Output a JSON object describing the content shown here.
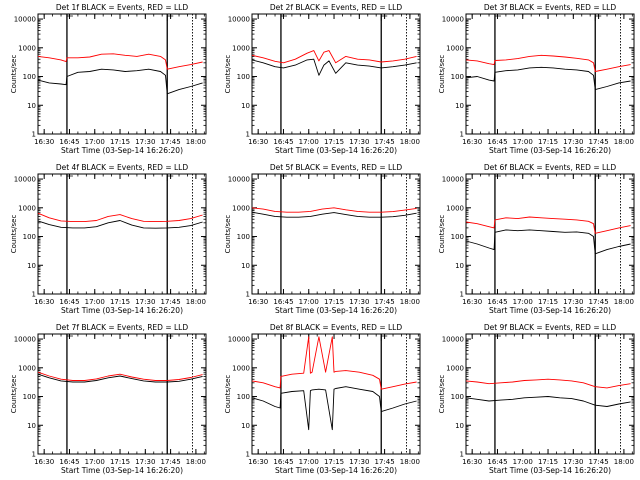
{
  "figure": {
    "x_tick_labels": [
      "16:30",
      "16:45",
      "17:00",
      "17:15",
      "17:30",
      "17:45",
      "18:00"
    ],
    "y_tick_labels": [
      "1",
      "10",
      "100",
      "1000",
      "10000"
    ],
    "ylabel": "Counts/sec",
    "xlabel": "Start Time (03-Sep-14 16:26:20)"
  },
  "chart_data": [
    {
      "type": "line",
      "title": "Det 1f BLACK = Events, RED = LLD",
      "xlabel": "Start Time (03-Sep-14 16:26:20)",
      "ylabel": "Counts/sec",
      "yscale": "log",
      "xlim": [
        "16:26:20",
        "18:06"
      ],
      "ylim": [
        1,
        15000
      ],
      "vlines": [
        "16:43.5",
        "17:43",
        "17:58"
      ],
      "x": [
        "16:26:20",
        "16:33",
        "16:40",
        "16:43",
        "16:43.5",
        "16:50",
        "16:57",
        "17:04",
        "17:11",
        "17:18",
        "17:25",
        "17:32",
        "17:39",
        "17:42",
        "17:43",
        "17:50",
        "17:57",
        "18:04"
      ],
      "series": [
        {
          "color": "#000000",
          "values": [
            75,
            60,
            55,
            52,
            100,
            140,
            150,
            180,
            170,
            150,
            160,
            180,
            150,
            110,
            25,
            35,
            45,
            60
          ]
        },
        {
          "color": "#ff0000",
          "values": [
            500,
            450,
            380,
            330,
            450,
            450,
            480,
            600,
            620,
            550,
            500,
            600,
            500,
            380,
            180,
            220,
            260,
            320
          ]
        }
      ]
    },
    {
      "type": "line",
      "title": "Det 2f BLACK = Events, RED = LLD",
      "xlabel": "Start Time (03-Sep-14 16:26:20)",
      "ylabel": "Counts/sec",
      "yscale": "log",
      "xlim": [
        "16:26:20",
        "18:06"
      ],
      "ylim": [
        1,
        15000
      ],
      "vlines": [
        "16:43.5",
        "17:43",
        "17:58"
      ],
      "x": [
        "16:26:20",
        "16:33",
        "16:40",
        "16:45",
        "16:52",
        "16:59",
        "17:03",
        "17:06",
        "17:09",
        "17:12",
        "17:16",
        "17:22",
        "17:29",
        "17:36",
        "17:43",
        "17:50",
        "17:57",
        "18:04"
      ],
      "series": [
        {
          "color": "#000000",
          "values": [
            380,
            300,
            220,
            200,
            250,
            380,
            400,
            110,
            250,
            350,
            130,
            300,
            250,
            230,
            200,
            220,
            250,
            300
          ]
        },
        {
          "color": "#ff0000",
          "values": [
            550,
            450,
            340,
            300,
            400,
            650,
            800,
            350,
            700,
            800,
            300,
            500,
            400,
            380,
            320,
            350,
            400,
            500
          ]
        }
      ]
    },
    {
      "type": "line",
      "title": "Det 3f BLACK = Events, RED = LLD",
      "xlabel": "Start Time (03-Sep-14 16:26:20)",
      "ylabel": "Counts/sec",
      "yscale": "log",
      "xlim": [
        "16:26:20",
        "18:06"
      ],
      "ylim": [
        1,
        15000
      ],
      "vlines": [
        "16:43.5",
        "17:43",
        "17:58"
      ],
      "x": [
        "16:26:20",
        "16:33",
        "16:40",
        "16:43",
        "16:43.5",
        "16:50",
        "16:57",
        "17:04",
        "17:11",
        "17:18",
        "17:25",
        "17:32",
        "17:39",
        "17:42",
        "17:43",
        "17:50",
        "17:57",
        "18:04"
      ],
      "series": [
        {
          "color": "#000000",
          "values": [
            90,
            100,
            75,
            70,
            140,
            160,
            170,
            200,
            210,
            200,
            180,
            170,
            150,
            110,
            35,
            45,
            60,
            70
          ]
        },
        {
          "color": "#ff0000",
          "values": [
            380,
            350,
            280,
            260,
            360,
            380,
            420,
            500,
            550,
            520,
            480,
            430,
            380,
            300,
            150,
            180,
            220,
            260
          ]
        }
      ]
    },
    {
      "type": "line",
      "title": "Det 4f BLACK = Events, RED = LLD",
      "xlabel": "Start Time (03-Sep-14 16:26:20)",
      "ylabel": "Counts/sec",
      "yscale": "log",
      "xlim": [
        "16:26:20",
        "18:06"
      ],
      "ylim": [
        1,
        15000
      ],
      "vlines": [
        "16:43.5",
        "17:43",
        "17:58"
      ],
      "x": [
        "16:26:20",
        "16:33",
        "16:40",
        "16:47",
        "16:54",
        "17:01",
        "17:08",
        "17:15",
        "17:22",
        "17:29",
        "17:36",
        "17:43",
        "17:50",
        "17:57",
        "18:04"
      ],
      "series": [
        {
          "color": "#000000",
          "values": [
            350,
            260,
            210,
            200,
            200,
            220,
            300,
            360,
            250,
            200,
            195,
            200,
            210,
            240,
            320
          ]
        },
        {
          "color": "#ff0000",
          "values": [
            650,
            450,
            350,
            330,
            330,
            360,
            500,
            580,
            420,
            340,
            330,
            340,
            360,
            420,
            560
          ]
        }
      ]
    },
    {
      "type": "line",
      "title": "Det 5f BLACK = Events, RED = LLD",
      "xlabel": "Start Time (03-Sep-14 16:26:20)",
      "ylabel": "Counts/sec",
      "yscale": "log",
      "xlim": [
        "16:26:20",
        "18:06"
      ],
      "ylim": [
        1,
        15000
      ],
      "vlines": [
        "16:43.5",
        "17:43",
        "17:58"
      ],
      "x": [
        "16:26:20",
        "16:33",
        "16:40",
        "16:47",
        "16:54",
        "17:01",
        "17:08",
        "17:15",
        "17:22",
        "17:29",
        "17:36",
        "17:43",
        "17:50",
        "17:57",
        "18:04"
      ],
      "series": [
        {
          "color": "#000000",
          "values": [
            700,
            600,
            500,
            470,
            470,
            500,
            600,
            680,
            580,
            500,
            470,
            470,
            490,
            550,
            650
          ]
        },
        {
          "color": "#ff0000",
          "values": [
            1000,
            900,
            750,
            700,
            700,
            750,
            900,
            1000,
            850,
            750,
            700,
            700,
            740,
            830,
            950
          ]
        }
      ]
    },
    {
      "type": "line",
      "title": "Det 6f BLACK = Events, RED = LLD",
      "xlabel": "Start Time (03-Sep-14 16:26:20)",
      "ylabel": "Counts/sec",
      "yscale": "log",
      "xlim": [
        "16:26:20",
        "18:06"
      ],
      "ylim": [
        1,
        15000
      ],
      "vlines": [
        "16:43.5",
        "17:43",
        "17:58"
      ],
      "x": [
        "16:26:20",
        "16:33",
        "16:40",
        "16:43",
        "16:43.5",
        "16:50",
        "16:57",
        "17:04",
        "17:11",
        "17:18",
        "17:25",
        "17:32",
        "17:39",
        "17:42",
        "17:43",
        "17:50",
        "17:57",
        "18:04"
      ],
      "series": [
        {
          "color": "#000000",
          "values": [
            70,
            55,
            40,
            35,
            140,
            170,
            160,
            170,
            160,
            150,
            140,
            145,
            130,
            100,
            25,
            35,
            45,
            55
          ]
        },
        {
          "color": "#ff0000",
          "values": [
            320,
            280,
            220,
            200,
            380,
            450,
            420,
            480,
            450,
            420,
            400,
            380,
            340,
            280,
            130,
            160,
            200,
            240
          ]
        }
      ]
    },
    {
      "type": "line",
      "title": "Det 7f BLACK = Events, RED = LLD",
      "xlabel": "Start Time (03-Sep-14 16:26:20)",
      "ylabel": "Counts/sec",
      "yscale": "log",
      "xlim": [
        "16:26:20",
        "18:06"
      ],
      "ylim": [
        1,
        15000
      ],
      "vlines": [
        "16:43.5",
        "17:43",
        "17:58"
      ],
      "x": [
        "16:26:20",
        "16:33",
        "16:40",
        "16:47",
        "16:54",
        "17:01",
        "17:08",
        "17:15",
        "17:22",
        "17:29",
        "17:36",
        "17:43",
        "17:50",
        "17:57",
        "18:04"
      ],
      "series": [
        {
          "color": "#000000",
          "values": [
            600,
            450,
            350,
            320,
            320,
            360,
            450,
            520,
            420,
            350,
            320,
            320,
            340,
            400,
            500
          ]
        },
        {
          "color": "#ff0000",
          "values": [
            700,
            520,
            400,
            360,
            360,
            410,
            520,
            600,
            480,
            400,
            360,
            360,
            390,
            460,
            580
          ]
        }
      ]
    },
    {
      "type": "line",
      "title": "Det 8f BLACK = Events, RED = LLD",
      "xlabel": "Start Time (03-Sep-14 16:26:20)",
      "ylabel": "Counts/sec",
      "yscale": "log",
      "xlim": [
        "16:26:20",
        "18:06"
      ],
      "ylim": [
        1,
        15000
      ],
      "vlines": [
        "16:43.5",
        "17:43",
        "17:58"
      ],
      "x": [
        "16:26:20",
        "16:33",
        "16:40",
        "16:43",
        "16:43.5",
        "16:50",
        "16:57",
        "17:00",
        "17:01",
        "17:02",
        "17:06",
        "17:10",
        "17:14",
        "17:15",
        "17:16",
        "17:22",
        "17:30",
        "17:38",
        "17:42",
        "17:43",
        "17:50",
        "17:57",
        "18:04"
      ],
      "series": [
        {
          "color": "#000000",
          "values": [
            90,
            70,
            45,
            40,
            130,
            150,
            160,
            7,
            160,
            170,
            180,
            170,
            7,
            180,
            190,
            220,
            180,
            150,
            100,
            30,
            40,
            55,
            70
          ]
        },
        {
          "color": "#ff0000",
          "values": [
            350,
            300,
            220,
            200,
            500,
            600,
            650,
            12000,
            650,
            700,
            12000,
            700,
            12000,
            700,
            750,
            800,
            700,
            550,
            400,
            180,
            220,
            270,
            320
          ]
        }
      ]
    },
    {
      "type": "line",
      "title": "Det 9f BLACK = Events, RED = LLD",
      "xlabel": "Start Time (03-Sep-14 16:26:20)",
      "ylabel": "Counts/sec",
      "yscale": "log",
      "xlim": [
        "16:26:20",
        "18:06"
      ],
      "ylim": [
        1,
        15000
      ],
      "vlines": [
        "16:43.5",
        "17:43",
        "17:58"
      ],
      "x": [
        "16:26:20",
        "16:33",
        "16:40",
        "16:47",
        "16:54",
        "17:01",
        "17:08",
        "17:15",
        "17:22",
        "17:29",
        "17:36",
        "17:43",
        "17:50",
        "17:57",
        "18:04"
      ],
      "series": [
        {
          "color": "#000000",
          "values": [
            90,
            80,
            70,
            75,
            80,
            90,
            95,
            100,
            90,
            85,
            70,
            50,
            45,
            55,
            65
          ]
        },
        {
          "color": "#ff0000",
          "values": [
            350,
            320,
            280,
            300,
            320,
            360,
            380,
            400,
            380,
            350,
            300,
            220,
            200,
            240,
            280
          ]
        }
      ]
    }
  ]
}
